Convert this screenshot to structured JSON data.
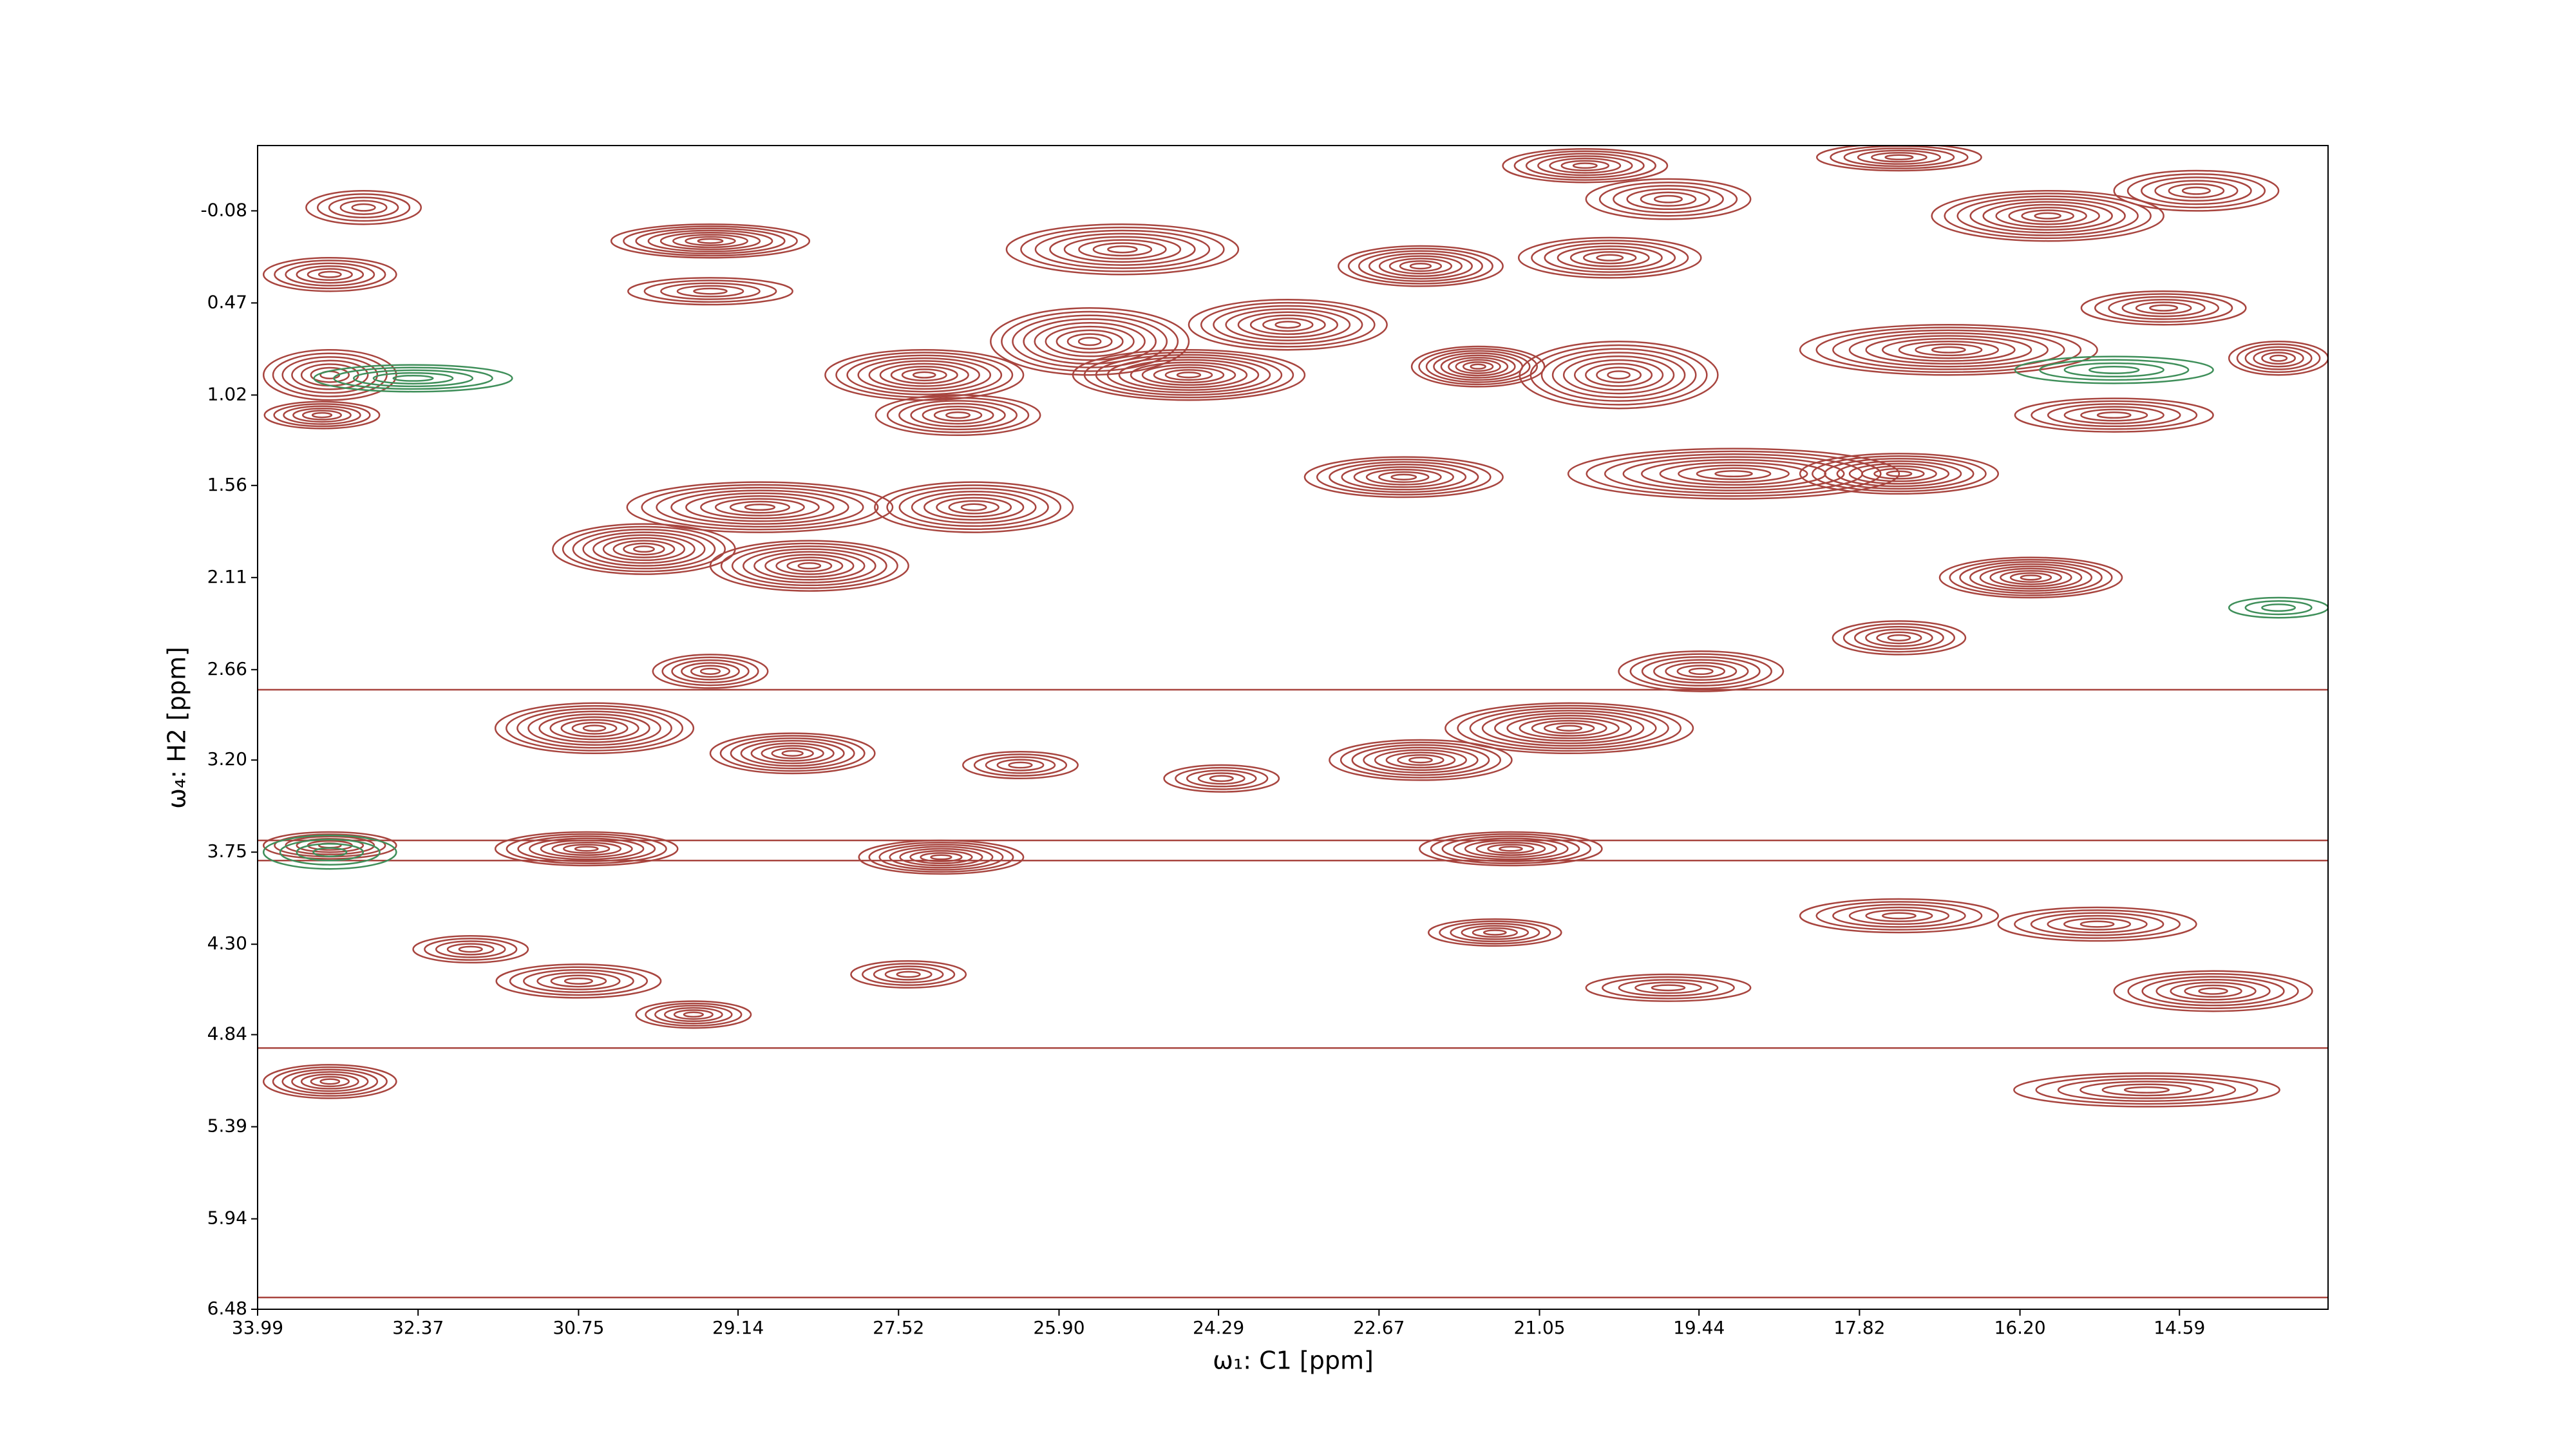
{
  "chart_data": {
    "type": "contour",
    "xlabel": "ω₁: C1 [ppm]",
    "ylabel": "ω₄: H2 [ppm]",
    "xlim": [
      33.99,
      13.09
    ],
    "ylim": [
      6.48,
      -0.47
    ],
    "xticks": [
      33.99,
      32.37,
      30.75,
      29.14,
      27.52,
      {
        "value": 25.9,
        "label": "25.90"
      },
      24.29,
      22.67,
      21.05,
      19.44,
      17.82,
      {
        "value": 16.2,
        "label": "16.20"
      },
      14.59
    ],
    "yticks": [
      -0.08,
      0.47,
      1.02,
      1.56,
      2.11,
      2.66,
      {
        "value": 3.2,
        "label": "3.20"
      },
      3.75,
      {
        "value": 4.3,
        "label": "4.30"
      },
      4.84,
      5.39,
      5.94,
      6.48
    ],
    "positive": {
      "color": "#a8453f",
      "x": [
        29.42,
        25.26,
        22.25,
        20.34,
        20.59,
        19.75,
        17.42,
        15.92,
        14.42,
        33.26,
        32.92,
        29.42,
        25.59,
        23.59,
        27.26,
        24.59,
        21.67,
        20.25,
        26.92,
        16.92,
        14.75,
        13.59,
        15.25,
        33.26,
        33.34,
        22.42,
        19.09,
        17.42,
        28.92,
        26.76,
        30.09,
        28.42,
        16.09,
        17.42,
        19.42,
        29.42,
        30.59,
        28.59,
        20.75,
        22.25,
        26.29,
        24.26,
        33.26,
        30.67,
        27.09,
        21.34,
        17.42,
        15.42,
        21.5,
        31.84,
        27.42,
        30.75,
        29.59,
        19.75,
        14.25,
        33.26,
        14.92
      ],
      "y": [
        0.1,
        0.15,
        0.25,
        0.2,
        -0.35,
        -0.15,
        -0.4,
        -0.05,
        -0.2,
        0.3,
        -0.1,
        0.4,
        0.7,
        0.6,
        0.9,
        0.9,
        0.85,
        0.9,
        1.14,
        0.75,
        0.5,
        0.8,
        1.14,
        0.9,
        1.14,
        1.51,
        1.49,
        1.49,
        1.69,
        1.69,
        1.94,
        2.04,
        2.11,
        2.47,
        2.67,
        2.67,
        3.01,
        3.16,
        3.01,
        3.2,
        3.23,
        3.31,
        3.71,
        3.73,
        3.78,
        3.73,
        4.13,
        4.18,
        4.23,
        4.33,
        4.48,
        4.52,
        4.72,
        4.56,
        4.58,
        5.12,
        5.17
      ],
      "wx": [
        1.0,
        1.17,
        0.83,
        0.92,
        0.83,
        0.83,
        0.83,
        1.17,
        0.83,
        0.67,
        0.58,
        0.83,
        1.0,
        1.0,
        1.0,
        1.17,
        0.67,
        1.0,
        0.83,
        1.5,
        0.83,
        0.5,
        1.0,
        0.67,
        0.58,
        1.0,
        1.67,
        1.0,
        1.34,
        1.0,
        0.92,
        1.0,
        0.92,
        0.67,
        0.83,
        0.58,
        1.0,
        0.83,
        1.25,
        0.92,
        0.58,
        0.58,
        0.67,
        0.92,
        0.83,
        0.92,
        1.0,
        1.0,
        0.67,
        0.58,
        0.58,
        0.83,
        0.58,
        0.83,
        1.0,
        0.67,
        1.34
      ],
      "wy": [
        0.1,
        0.15,
        0.12,
        0.12,
        0.1,
        0.12,
        0.08,
        0.15,
        0.12,
        0.1,
        0.1,
        0.08,
        0.2,
        0.15,
        0.15,
        0.15,
        0.12,
        0.2,
        0.12,
        0.15,
        0.1,
        0.1,
        0.1,
        0.15,
        0.08,
        0.12,
        0.15,
        0.12,
        0.15,
        0.15,
        0.15,
        0.15,
        0.12,
        0.1,
        0.12,
        0.1,
        0.15,
        0.12,
        0.15,
        0.12,
        0.08,
        0.08,
        0.08,
        0.1,
        0.1,
        0.1,
        0.1,
        0.1,
        0.08,
        0.08,
        0.08,
        0.1,
        0.08,
        0.08,
        0.12,
        0.1,
        0.1
      ],
      "levels": [
        8,
        8,
        8,
        7,
        7,
        6,
        6,
        9,
        6,
        6,
        5,
        5,
        9,
        8,
        9,
        10,
        9,
        9,
        7,
        9,
        6,
        6,
        6,
        7,
        6,
        8,
        9,
        8,
        9,
        8,
        9,
        9,
        9,
        6,
        7,
        6,
        9,
        8,
        10,
        8,
        5,
        5,
        6,
        8,
        8,
        8,
        6,
        6,
        6,
        5,
        5,
        6,
        6,
        5,
        7,
        7,
        6
      ]
    },
    "negative": {
      "color": "#3f8f5a",
      "x": [
        32.42,
        33.26,
        15.25,
        13.59
      ],
      "y": [
        0.92,
        3.75,
        0.87,
        2.29
      ],
      "wx": [
        1.0,
        0.67,
        1.0,
        0.5
      ],
      "wy": [
        0.08,
        0.1,
        0.08,
        0.06
      ],
      "levels": [
        5,
        4,
        4,
        3
      ]
    },
    "ridges": [
      2.78,
      3.68,
      3.8,
      4.92,
      6.41
    ]
  }
}
